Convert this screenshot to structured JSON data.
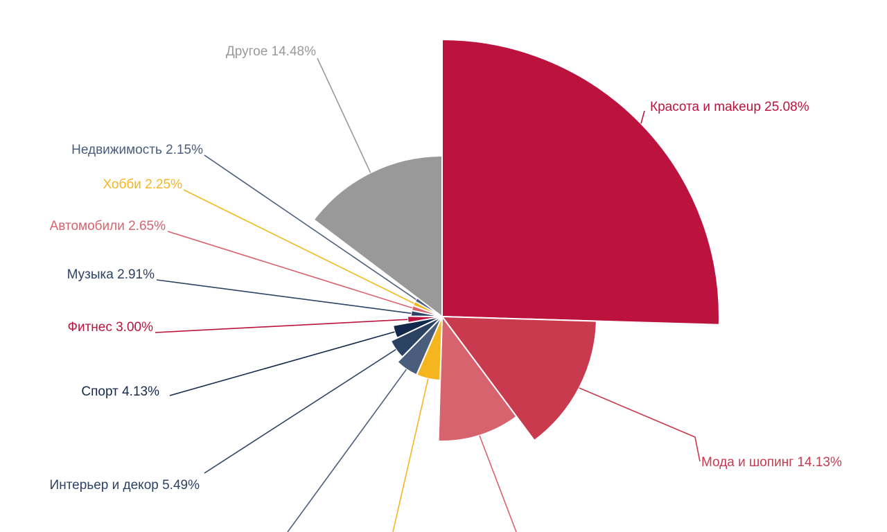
{
  "chart_data": {
    "type": "pie",
    "title": "",
    "legend": "none",
    "series": [
      {
        "name": "Красота и makeup",
        "value": 25.08,
        "label": "Красота и makeup 25.08%",
        "color": "#BC133E"
      },
      {
        "name": "Мода и шопинг",
        "value": 14.13,
        "label": "Мода и шопинг 14.13%",
        "color": "#C93A4E"
      },
      {
        "name": "",
        "value": 10.5,
        "label": "",
        "color": "#D6636E"
      },
      {
        "name": "",
        "value": 6.0,
        "label": "",
        "color": "#F5B51F"
      },
      {
        "name": "",
        "value": 5.7,
        "label": "",
        "color": "#4A5D7C"
      },
      {
        "name": "Интерьер и декор",
        "value": 5.49,
        "label": "Интерьер и декор 5.49%",
        "color": "#2C4263"
      },
      {
        "name": "Спорт",
        "value": 4.13,
        "label": "Спорт 4.13%",
        "color": "#13294B"
      },
      {
        "name": "Фитнес",
        "value": 3.0,
        "label": "Фитнес 3.00%",
        "color": "#BC133E"
      },
      {
        "name": "Музыка",
        "value": 2.91,
        "label": "Музыка 2.91%",
        "color": "#2C4263"
      },
      {
        "name": "Автомобили",
        "value": 2.65,
        "label": "Автомобили 2.65%",
        "color": "#D6636E"
      },
      {
        "name": "Хобби",
        "value": 2.25,
        "label": "Хобби 2.25%",
        "color": "#F5B51F"
      },
      {
        "name": "Недвижимость",
        "value": 2.15,
        "label": "Недвижимость 2.15%",
        "color": "#4A5D7C"
      },
      {
        "name": "Другое",
        "value": 14.48,
        "label": "Другое 14.48%",
        "color": "#999999"
      }
    ]
  }
}
